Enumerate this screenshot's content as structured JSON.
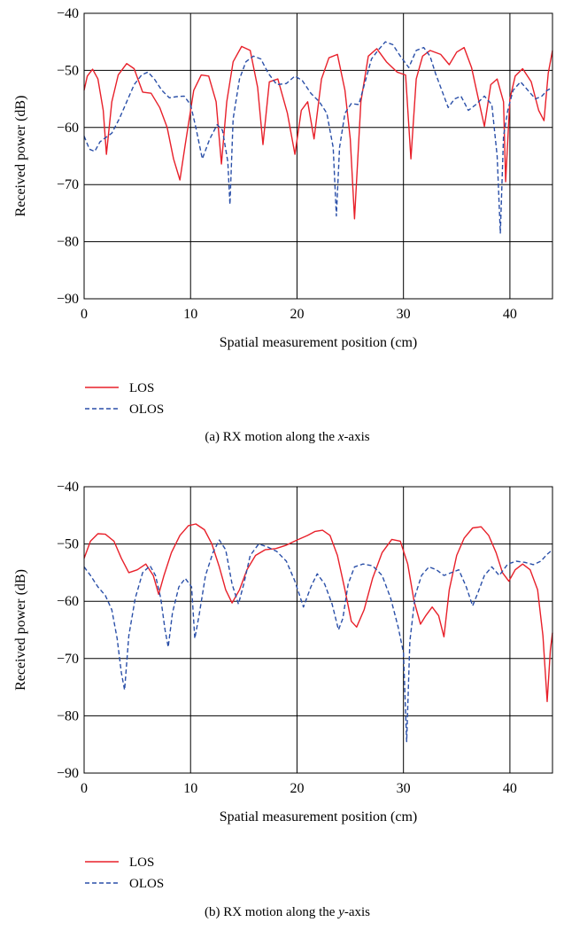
{
  "chart_data": [
    {
      "type": "line",
      "caption": {
        "prefix": "(a)  RX motion along the ",
        "var": "x",
        "suffix": "-axis"
      },
      "xlabel": "Spatial measurement position (cm)",
      "ylabel": "Received power (dB)",
      "xlim": [
        0,
        44
      ],
      "ylim": [
        -90,
        -40
      ],
      "xticks": [
        0,
        10,
        20,
        30,
        40
      ],
      "yticks": [
        -90,
        -80,
        -70,
        -60,
        -50,
        -40
      ],
      "ytick_labels": [
        "−90",
        "−80",
        "−70",
        "−60",
        "−50",
        "−40"
      ],
      "grid": true,
      "legend_position": "below-left",
      "series": [
        {
          "name": "LOS",
          "color": "#e8202a",
          "dash": "solid",
          "x": [
            0,
            0.3,
            0.8,
            1.3,
            1.8,
            2.1,
            2.6,
            3.2,
            4.0,
            4.7,
            5.5,
            6.3,
            7.1,
            7.8,
            8.4,
            9.0,
            9.5,
            10.3,
            11.0,
            11.7,
            12.4,
            12.9,
            13.4,
            14.0,
            14.8,
            15.6,
            16.3,
            16.8,
            17.4,
            18.2,
            19.1,
            19.8,
            20.4,
            21.0,
            21.6,
            22.3,
            23.0,
            23.8,
            24.5,
            25.0,
            25.4,
            26.0,
            26.7,
            27.5,
            28.4,
            29.4,
            30.2,
            30.7,
            31.2,
            31.8,
            32.5,
            33.5,
            34.3,
            35.0,
            35.7,
            36.4,
            37.1,
            37.6,
            38.2,
            38.8,
            39.4,
            39.6,
            40.0,
            40.5,
            41.2,
            42.0,
            42.7,
            43.2,
            43.6,
            44.0
          ],
          "y": [
            -53.5,
            -51.0,
            -49.8,
            -51.5,
            -57.0,
            -64.7,
            -55.5,
            -50.8,
            -48.8,
            -49.7,
            -53.8,
            -54.0,
            -56.5,
            -60.0,
            -65.5,
            -69.2,
            -63.0,
            -53.5,
            -50.8,
            -51.0,
            -55.5,
            -66.4,
            -55.5,
            -48.5,
            -45.8,
            -46.5,
            -53.0,
            -63.0,
            -52.0,
            -51.5,
            -57.5,
            -64.7,
            -57.0,
            -55.5,
            -62.0,
            -51.5,
            -47.8,
            -47.2,
            -53.5,
            -62.0,
            -76.0,
            -55.5,
            -47.5,
            -46.2,
            -48.5,
            -50.3,
            -50.8,
            -65.5,
            -51.5,
            -47.5,
            -46.5,
            -47.2,
            -49.0,
            -46.8,
            -46.0,
            -49.5,
            -55.5,
            -59.8,
            -52.5,
            -51.5,
            -55.5,
            -69.5,
            -55.0,
            -51.0,
            -49.7,
            -52.0,
            -57.0,
            -58.8,
            -50.5,
            -46.5
          ]
        },
        {
          "name": "OLOS",
          "color": "#2a4fa8",
          "dash": "dashed",
          "x": [
            0,
            0.5,
            1.0,
            1.5,
            2.0,
            2.6,
            3.3,
            4.0,
            4.7,
            5.4,
            6.0,
            6.6,
            7.3,
            8.0,
            8.7,
            9.4,
            10.0,
            10.5,
            11.1,
            11.8,
            12.5,
            13.0,
            13.5,
            13.7,
            14.0,
            14.6,
            15.2,
            15.9,
            16.6,
            17.3,
            18.1,
            19.0,
            19.8,
            20.5,
            21.3,
            22.1,
            22.8,
            23.4,
            23.7,
            24.0,
            24.5,
            25.1,
            25.8,
            26.4,
            27.0,
            27.6,
            28.3,
            29.0,
            29.7,
            30.5,
            31.2,
            31.9,
            32.5,
            33.0,
            33.6,
            34.2,
            34.8,
            35.4,
            36.1,
            36.8,
            37.6,
            38.3,
            38.8,
            39.1,
            39.4,
            39.8,
            40.3,
            41.0,
            41.7,
            42.4,
            43.0,
            43.5,
            44.0
          ],
          "y": [
            -61.5,
            -63.8,
            -64.2,
            -62.5,
            -61.8,
            -61.0,
            -58.5,
            -55.5,
            -52.5,
            -50.8,
            -50.3,
            -51.5,
            -53.5,
            -54.8,
            -54.6,
            -54.5,
            -56.0,
            -60.0,
            -65.5,
            -62.0,
            -59.5,
            -60.5,
            -66.0,
            -73.5,
            -58.5,
            -51.5,
            -48.5,
            -47.5,
            -48.0,
            -50.5,
            -52.5,
            -52.3,
            -51.0,
            -51.8,
            -54.0,
            -55.5,
            -57.5,
            -63.5,
            -75.5,
            -63.5,
            -57.5,
            -55.8,
            -56.0,
            -52.0,
            -48.0,
            -46.5,
            -45.0,
            -45.5,
            -47.5,
            -49.5,
            -46.5,
            -46.0,
            -47.5,
            -50.5,
            -53.5,
            -56.5,
            -55.0,
            -54.5,
            -57.0,
            -56.0,
            -54.5,
            -56.0,
            -65.0,
            -78.5,
            -61.5,
            -57.0,
            -53.5,
            -52.0,
            -53.5,
            -55.0,
            -54.5,
            -53.5,
            -53.0
          ]
        }
      ]
    },
    {
      "type": "line",
      "caption": {
        "prefix": "(b)  RX motion along the ",
        "var": "y",
        "suffix": "-axis"
      },
      "xlabel": "Spatial measurement position (cm)",
      "ylabel": "Received power (dB)",
      "xlim": [
        0,
        44
      ],
      "ylim": [
        -90,
        -40
      ],
      "xticks": [
        0,
        10,
        20,
        30,
        40
      ],
      "yticks": [
        -90,
        -80,
        -70,
        -60,
        -50,
        -40
      ],
      "ytick_labels": [
        "−90",
        "−80",
        "−70",
        "−60",
        "−50",
        "−40"
      ],
      "grid": true,
      "legend_position": "below-left",
      "series": [
        {
          "name": "LOS",
          "color": "#e8202a",
          "dash": "solid",
          "x": [
            0,
            0.6,
            1.3,
            2.0,
            2.8,
            3.5,
            4.2,
            5.0,
            5.8,
            6.5,
            7.0,
            7.5,
            8.2,
            9.0,
            9.8,
            10.5,
            11.3,
            12.0,
            12.7,
            13.3,
            13.9,
            14.6,
            15.3,
            16.1,
            17.0,
            18.0,
            19.0,
            20.0,
            21.0,
            21.7,
            22.4,
            23.1,
            23.8,
            24.5,
            25.1,
            25.6,
            26.3,
            27.1,
            28.0,
            28.9,
            29.7,
            30.4,
            31.0,
            31.6,
            32.1,
            32.7,
            33.3,
            33.8,
            34.3,
            35.0,
            35.7,
            36.5,
            37.3,
            38.0,
            38.7,
            39.3,
            39.9,
            40.5,
            41.2,
            41.9,
            42.6,
            43.1,
            43.5,
            43.8,
            44.0
          ],
          "y": [
            -52.5,
            -49.5,
            -48.2,
            -48.3,
            -49.5,
            -52.5,
            -55.0,
            -54.5,
            -53.5,
            -55.5,
            -58.8,
            -55.5,
            -51.5,
            -48.5,
            -46.8,
            -46.5,
            -47.5,
            -50.0,
            -54.0,
            -58.0,
            -60.3,
            -58.0,
            -54.5,
            -52.0,
            -51.0,
            -50.8,
            -50.2,
            -49.3,
            -48.5,
            -47.8,
            -47.6,
            -48.5,
            -52.0,
            -58.0,
            -63.5,
            -64.5,
            -61.5,
            -56.0,
            -51.5,
            -49.2,
            -49.5,
            -53.5,
            -60.0,
            -64.0,
            -62.5,
            -61.0,
            -62.5,
            -66.2,
            -58.0,
            -52.0,
            -49.0,
            -47.2,
            -47.0,
            -48.5,
            -51.5,
            -55.0,
            -56.5,
            -54.5,
            -53.5,
            -54.5,
            -58.0,
            -66.0,
            -77.5,
            -68.5,
            -65.5
          ]
        },
        {
          "name": "OLOS",
          "color": "#2a4fa8",
          "dash": "dashed",
          "x": [
            0,
            0.6,
            1.3,
            2.0,
            2.6,
            3.1,
            3.5,
            3.8,
            4.2,
            4.8,
            5.5,
            6.2,
            6.7,
            7.2,
            7.6,
            7.9,
            8.3,
            8.9,
            9.5,
            10.1,
            10.4,
            10.8,
            11.4,
            12.1,
            12.7,
            13.3,
            13.9,
            14.5,
            15.0,
            15.6,
            16.4,
            17.2,
            18.1,
            19.0,
            19.8,
            20.6,
            21.3,
            21.9,
            22.6,
            23.3,
            23.9,
            24.3,
            24.8,
            25.4,
            26.2,
            27.1,
            28.0,
            28.8,
            29.5,
            30.0,
            30.3,
            30.6,
            31.1,
            31.7,
            32.4,
            33.1,
            33.8,
            34.5,
            35.2,
            35.9,
            36.5,
            37.0,
            37.6,
            38.3,
            39.0,
            39.8,
            40.6,
            41.4,
            42.2,
            42.9,
            43.5,
            44.0
          ],
          "y": [
            -54.0,
            -55.5,
            -57.5,
            -59.0,
            -61.5,
            -66.5,
            -72.5,
            -75.5,
            -66.0,
            -59.5,
            -55.0,
            -53.8,
            -55.5,
            -59.5,
            -65.0,
            -68.0,
            -62.0,
            -57.5,
            -56.0,
            -57.5,
            -66.5,
            -62.5,
            -55.5,
            -51.5,
            -49.3,
            -51.0,
            -57.0,
            -60.5,
            -57.0,
            -52.0,
            -50.0,
            -50.5,
            -51.3,
            -53.0,
            -56.5,
            -61.0,
            -57.5,
            -55.2,
            -57.0,
            -60.5,
            -65.0,
            -63.0,
            -57.0,
            -54.0,
            -53.5,
            -53.8,
            -55.5,
            -59.5,
            -64.5,
            -69.0,
            -84.5,
            -67.0,
            -59.0,
            -55.5,
            -54.0,
            -54.5,
            -55.5,
            -55.0,
            -54.5,
            -57.5,
            -60.8,
            -58.5,
            -55.5,
            -54.0,
            -55.5,
            -53.5,
            -53.0,
            -53.2,
            -53.6,
            -53.0,
            -51.8,
            -51.0
          ]
        }
      ]
    }
  ]
}
